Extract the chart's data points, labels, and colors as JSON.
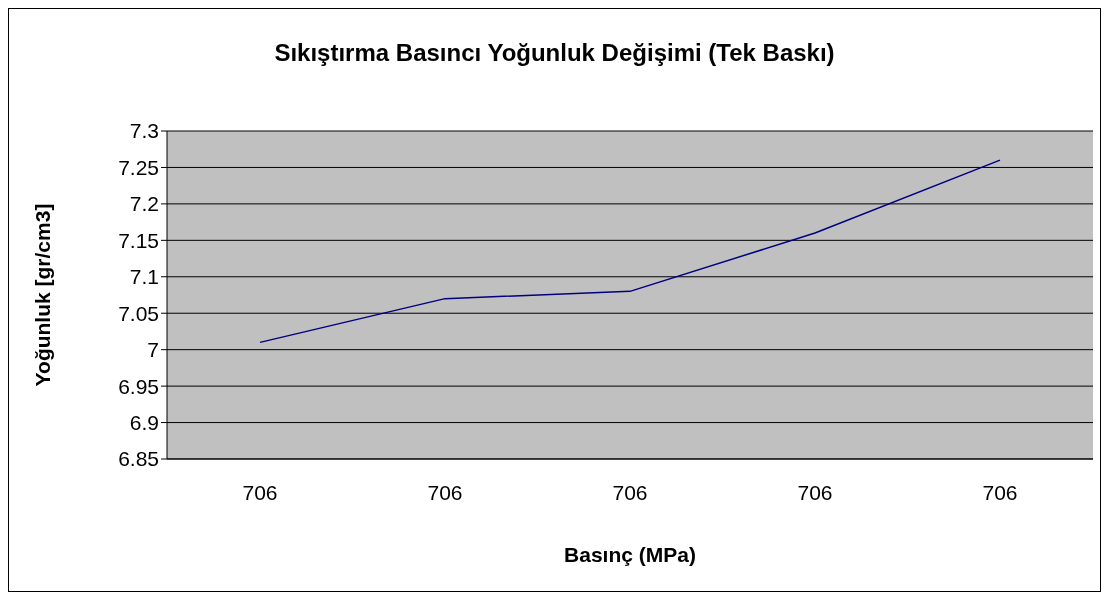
{
  "chart_data": {
    "type": "line",
    "title": "Sıkıştırma Basıncı Yoğunluk Değişimi (Tek Baskı)",
    "xlabel": "Basınç (MPa)",
    "ylabel": "Yoğunluk [gr/cm3]",
    "categories": [
      "706",
      "706",
      "706",
      "706",
      "706"
    ],
    "series": [
      {
        "color": "#000080",
        "values": [
          7.01,
          7.07,
          7.08,
          7.16,
          7.26
        ]
      }
    ],
    "ylim": [
      6.85,
      7.3
    ],
    "yticks": [
      6.85,
      6.9,
      6.95,
      7,
      7.05,
      7.1,
      7.15,
      7.2,
      7.25,
      7.3
    ],
    "grid": "y",
    "marker": "none",
    "line_style": "solid",
    "legend": false
  }
}
